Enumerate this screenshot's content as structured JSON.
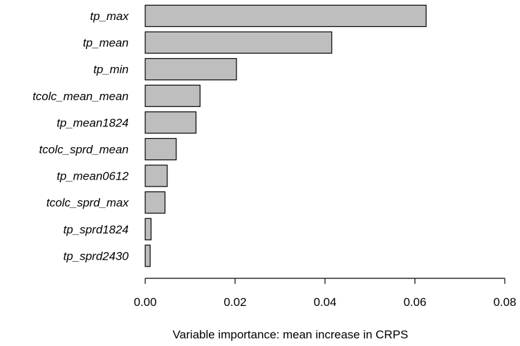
{
  "chart_data": {
    "type": "bar",
    "orientation": "horizontal",
    "categories": [
      "tp_max",
      "tp_mean",
      "tp_min",
      "tcolc_mean_mean",
      "tp_mean1824",
      "tcolc_sprd_mean",
      "tp_mean0612",
      "tcolc_sprd_max",
      "tp_sprd1824",
      "tp_sprd2430"
    ],
    "values": [
      0.0625,
      0.0415,
      0.0203,
      0.0122,
      0.0113,
      0.0069,
      0.0049,
      0.0044,
      0.0013,
      0.0011
    ],
    "xlabel": "Variable importance: mean increase in CRPS",
    "ylabel": "",
    "title": "",
    "xlim": [
      0,
      0.08
    ],
    "xticks": [
      0,
      0.02,
      0.04,
      0.06,
      0.08
    ],
    "xtick_labels": [
      "0.00",
      "0.02",
      "0.04",
      "0.06",
      "0.08"
    ],
    "grid": false,
    "colors": {
      "bar_fill": "#bebebe",
      "bar_stroke": "#000000",
      "axis": "#000000"
    }
  }
}
